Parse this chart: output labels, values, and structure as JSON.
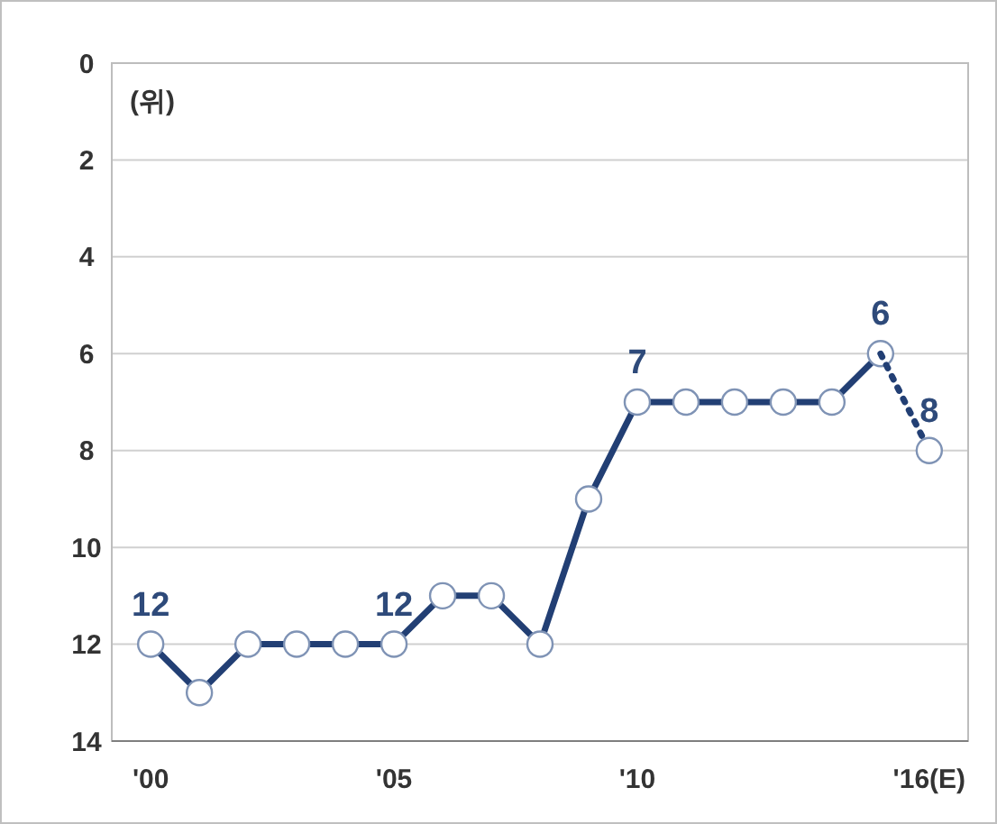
{
  "chart_data": {
    "type": "line",
    "ylabel": "(위)",
    "categories": [
      "'00",
      null,
      null,
      null,
      null,
      "'05",
      null,
      null,
      null,
      null,
      "'10",
      null,
      null,
      null,
      null,
      null,
      "'16(E)"
    ],
    "ylim": [
      14,
      0
    ],
    "yticks": [
      0,
      2,
      4,
      6,
      8,
      10,
      12,
      14
    ],
    "grid": "y",
    "marker": "circle",
    "series": [
      {
        "color": "#223f74",
        "line_style": "solid",
        "values": [
          12,
          13,
          12,
          12,
          12,
          12,
          11,
          11,
          12,
          9,
          7,
          7,
          7,
          7,
          7,
          6,
          null
        ],
        "value_labels": [
          "12",
          null,
          null,
          null,
          null,
          "12",
          null,
          null,
          null,
          null,
          "7",
          null,
          null,
          null,
          null,
          "6",
          null
        ]
      },
      {
        "color": "#223f74",
        "line_style": "dotted",
        "values": [
          null,
          null,
          null,
          null,
          null,
          null,
          null,
          null,
          null,
          null,
          null,
          null,
          null,
          null,
          null,
          6,
          8
        ],
        "value_labels": [
          null,
          null,
          null,
          null,
          null,
          null,
          null,
          null,
          null,
          null,
          null,
          null,
          null,
          null,
          null,
          null,
          "8"
        ]
      }
    ]
  }
}
